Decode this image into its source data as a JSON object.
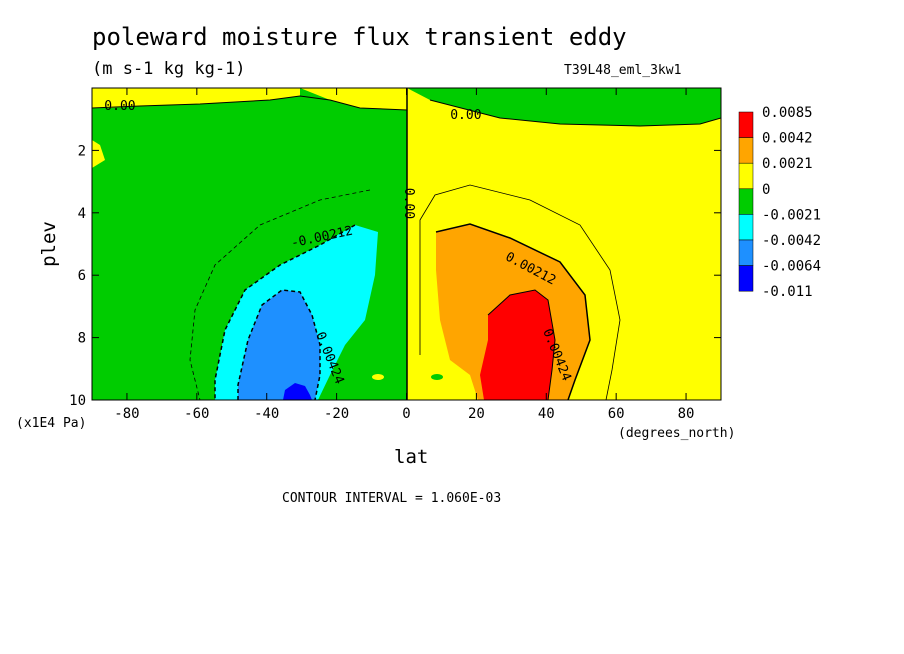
{
  "chart_data": {
    "type": "heatmap",
    "title": "poleward moisture flux transient eddy",
    "subtitle": "(m s-1 kg kg-1)",
    "run_label": "T39L48_eml_3kw1",
    "xlabel": "lat",
    "x_unit": "(degrees_north)",
    "ylabel": "plev",
    "y_unit": "(x1E4 Pa)",
    "xlim": [
      -90,
      90
    ],
    "ylim": [
      10,
      0
    ],
    "xticks": [
      "-80",
      "-60",
      "-40",
      "-20",
      "0",
      "20",
      "40",
      "60",
      "80"
    ],
    "yticks": [
      "2",
      "4",
      "6",
      "8",
      "10"
    ],
    "footer": "CONTOUR INTERVAL = 1.060E-03",
    "legend": [
      {
        "label": "0.0085",
        "color": "#ff0000"
      },
      {
        "label": "0.0042",
        "color": "#ffa500"
      },
      {
        "label": "0.0021",
        "color": "#ffff00"
      },
      {
        "label": "0",
        "color": "#00cc00"
      },
      {
        "label": "-0.0021",
        "color": "#00ffff"
      },
      {
        "label": "-0.0042",
        "color": "#1e90ff"
      },
      {
        "label": "-0.0064",
        "color": "#0000ff"
      },
      {
        "label": "-0.011",
        "color": ""
      }
    ],
    "contour_labels": [
      {
        "text": "0.00",
        "lat": -82,
        "plev": 0.7
      },
      {
        "text": "0.00",
        "lat": 17,
        "plev": 1.0
      },
      {
        "text": "0.00",
        "lat": -0.5,
        "plev": 3.7
      },
      {
        "text": "-0.00212",
        "lat": -24,
        "plev": 4.9
      },
      {
        "text": "0.00212",
        "lat": 35,
        "plev": 5.9
      },
      {
        "text": "0.00424",
        "lat": -23,
        "plev": 8.7
      },
      {
        "text": "0.00424",
        "lat": 42,
        "plev": 8.6
      }
    ],
    "regions": [
      {
        "name": "positive-flux",
        "level": "0.0021",
        "color": "#ffff00"
      },
      {
        "name": "negative-flux",
        "level": "0",
        "color": "#00cc00"
      },
      {
        "name": "max-positive",
        "level": "0.0085",
        "color": "#ff0000"
      },
      {
        "name": "min-negative",
        "level": "-0.0064",
        "color": "#0000ff"
      }
    ],
    "grid": false,
    "legend_position": "right"
  }
}
